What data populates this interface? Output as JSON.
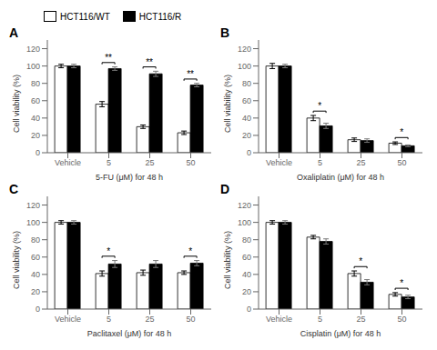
{
  "chart_data": [
    {
      "type": "bar",
      "title": "A",
      "xlabel": "5-FU (μM) for 48 h",
      "ylabel": "Cell viability (%)",
      "categories": [
        "Vehicle",
        "5",
        "25",
        "50"
      ],
      "series": [
        {
          "name": "HCT116/WT",
          "color": "white",
          "values": [
            100,
            56,
            30,
            23
          ],
          "errors": [
            2,
            3,
            2,
            2
          ]
        },
        {
          "name": "HCT116/R",
          "color": "black",
          "values": [
            100,
            97,
            91,
            78
          ],
          "errors": [
            2,
            2,
            3,
            2
          ]
        }
      ],
      "annotations": [
        {
          "x": "5",
          "text": "**"
        },
        {
          "x": "25",
          "text": "**"
        },
        {
          "x": "50",
          "text": "**"
        }
      ],
      "ylim": [
        0,
        130
      ],
      "yticks": [
        0,
        20,
        40,
        60,
        80,
        100,
        120
      ],
      "legend": "upper left"
    },
    {
      "type": "bar",
      "title": "B",
      "xlabel": "Oxaliplatin (μM) for 48 h",
      "ylabel": "Cell viability (%)",
      "categories": [
        "Vehicle",
        "5",
        "25",
        "50"
      ],
      "series": [
        {
          "name": "HCT116/WT",
          "color": "white",
          "values": [
            100,
            40,
            15,
            11
          ],
          "errors": [
            3,
            3,
            2,
            1.5
          ]
        },
        {
          "name": "HCT116/R",
          "color": "black",
          "values": [
            100,
            31,
            14,
            8
          ],
          "errors": [
            2,
            3,
            2,
            1
          ]
        }
      ],
      "annotations": [
        {
          "x": "5",
          "text": "*"
        },
        {
          "x": "50",
          "text": "*"
        }
      ],
      "ylim": [
        0,
        130
      ],
      "yticks": [
        0,
        20,
        40,
        60,
        80,
        100,
        120
      ]
    },
    {
      "type": "bar",
      "title": "C",
      "xlabel": "Paclitaxel (μM) for 48 h",
      "ylabel": "Cell viability (%)",
      "categories": [
        "Vehicle",
        "5",
        "25",
        "50"
      ],
      "series": [
        {
          "name": "HCT116/WT",
          "color": "white",
          "values": [
            100,
            41,
            42,
            42
          ],
          "errors": [
            2,
            3,
            3,
            2
          ]
        },
        {
          "name": "HCT116/R",
          "color": "black",
          "values": [
            100,
            52,
            52,
            53
          ],
          "errors": [
            2,
            4,
            4,
            3
          ]
        }
      ],
      "annotations": [
        {
          "x": "5",
          "text": "*"
        },
        {
          "x": "50",
          "text": "*"
        }
      ],
      "ylim": [
        0,
        130
      ],
      "yticks": [
        0,
        20,
        40,
        60,
        80,
        100,
        120
      ]
    },
    {
      "type": "bar",
      "title": "D",
      "xlabel": "Cisplatin (μM) for 48 h",
      "ylabel": "Cell viability (%)",
      "categories": [
        "Vehicle",
        "5",
        "25",
        "50"
      ],
      "series": [
        {
          "name": "HCT116/WT",
          "color": "white",
          "values": [
            100,
            83,
            41,
            17
          ],
          "errors": [
            2,
            2,
            3,
            2
          ]
        },
        {
          "name": "HCT116/R",
          "color": "black",
          "values": [
            100,
            78,
            31,
            14
          ],
          "errors": [
            2,
            3,
            3,
            2
          ]
        }
      ],
      "annotations": [
        {
          "x": "25",
          "text": "*"
        },
        {
          "x": "50",
          "text": "*"
        }
      ],
      "ylim": [
        0,
        130
      ],
      "yticks": [
        0,
        20,
        40,
        60,
        80,
        100,
        120
      ]
    }
  ]
}
